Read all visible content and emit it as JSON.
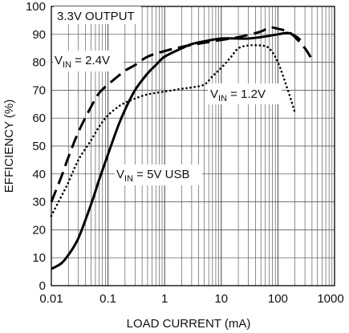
{
  "chart_data": {
    "type": "line",
    "title": "",
    "xlabel": "LOAD CURRENT (mA)",
    "ylabel": "EFFICIENCY (%)",
    "x_scale": "log",
    "xlim": [
      0.01,
      1000
    ],
    "ylim": [
      0,
      100
    ],
    "grid": true,
    "x_ticks": [
      "0.01",
      "0.1",
      "1",
      "10",
      "100",
      "1000"
    ],
    "y_ticks": [
      "0",
      "10",
      "20",
      "30",
      "40",
      "50",
      "60",
      "70",
      "80",
      "90",
      "100"
    ],
    "annotations": [
      {
        "text": "3.3V OUTPUT"
      },
      {
        "text_main": "V",
        "text_sub": "IN",
        "text_rest": " = 2.4V",
        "series": "2.4V"
      },
      {
        "text_main": "V",
        "text_sub": "IN",
        "text_rest": " = 1.2V",
        "series": "1.2V"
      },
      {
        "text_main": "V",
        "text_sub": "IN",
        "text_rest": " = 5V USB",
        "series": "5V USB"
      }
    ],
    "series": [
      {
        "id": "5V USB",
        "style": "solid",
        "x": [
          0.01,
          0.015,
          0.02,
          0.03,
          0.05,
          0.07,
          0.1,
          0.15,
          0.2,
          0.3,
          0.5,
          0.7,
          1,
          2,
          3,
          5,
          10,
          20,
          30,
          50,
          100,
          150,
          200,
          250
        ],
        "y": [
          6,
          8,
          11,
          17,
          29,
          38,
          47,
          57,
          63,
          70,
          76,
          79,
          82,
          85,
          86.5,
          87.5,
          88.5,
          88.5,
          88.5,
          89,
          90,
          90.5,
          89.5,
          88
        ]
      },
      {
        "id": "2.4V",
        "style": "dashed",
        "x": [
          0.01,
          0.015,
          0.02,
          0.03,
          0.05,
          0.07,
          0.1,
          0.15,
          0.2,
          0.3,
          0.5,
          1,
          2,
          5,
          10,
          20,
          50,
          70,
          100,
          150,
          200,
          300,
          400
        ],
        "y": [
          30,
          39,
          46,
          55,
          64,
          69,
          72,
          75,
          77,
          79,
          82,
          84,
          85.5,
          87,
          88,
          89,
          91,
          92.5,
          92,
          91,
          89,
          85,
          81
        ]
      },
      {
        "id": "1.2V",
        "style": "dotted",
        "x": [
          0.01,
          0.015,
          0.02,
          0.03,
          0.05,
          0.07,
          0.1,
          0.15,
          0.2,
          0.3,
          0.5,
          1,
          2,
          3,
          5,
          7,
          10,
          15,
          20,
          30,
          50,
          70,
          100,
          150,
          200
        ],
        "y": [
          25,
          32,
          37,
          45,
          52,
          57,
          61,
          64,
          65.5,
          67,
          68.5,
          69.5,
          70.5,
          71,
          72,
          75,
          78,
          82,
          85,
          86,
          86,
          85,
          80,
          70,
          62
        ]
      }
    ]
  }
}
